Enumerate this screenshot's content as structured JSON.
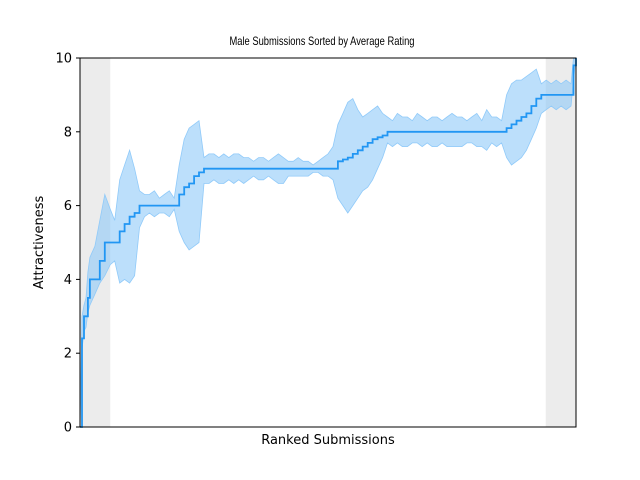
{
  "chart_data": {
    "type": "line",
    "title": "Male Submissions Sorted by Average Rating",
    "xlabel": "Ranked Submissions",
    "ylabel": "Attractiveness",
    "ylim": [
      0,
      10
    ],
    "xlim": [
      0,
      1
    ],
    "yticks": [
      0,
      2,
      4,
      6,
      8,
      10
    ],
    "xticks": [],
    "grid": false,
    "legend": "none",
    "colors": {
      "line": "#2196f3",
      "band": "#90caf9",
      "shade": "#e0e0e0"
    },
    "shaded_regions": [
      [
        0.0,
        0.061
      ],
      [
        0.939,
        1.0
      ]
    ],
    "series": [
      {
        "x": [
          0.0,
          0.004,
          0.008,
          0.012,
          0.016,
          0.02,
          0.03,
          0.04,
          0.05,
          0.061,
          0.07,
          0.08,
          0.09,
          0.1,
          0.11,
          0.12,
          0.13,
          0.14,
          0.15,
          0.16,
          0.17,
          0.18,
          0.19,
          0.2,
          0.21,
          0.22,
          0.23,
          0.24,
          0.25,
          0.26,
          0.27,
          0.28,
          0.29,
          0.3,
          0.31,
          0.32,
          0.33,
          0.34,
          0.35,
          0.36,
          0.37,
          0.38,
          0.39,
          0.4,
          0.41,
          0.42,
          0.43,
          0.44,
          0.45,
          0.46,
          0.47,
          0.48,
          0.49,
          0.5,
          0.51,
          0.52,
          0.53,
          0.54,
          0.55,
          0.56,
          0.57,
          0.58,
          0.59,
          0.6,
          0.61,
          0.62,
          0.63,
          0.64,
          0.65,
          0.66,
          0.67,
          0.68,
          0.69,
          0.7,
          0.71,
          0.72,
          0.73,
          0.74,
          0.75,
          0.76,
          0.77,
          0.78,
          0.79,
          0.8,
          0.81,
          0.82,
          0.83,
          0.84,
          0.85,
          0.86,
          0.87,
          0.88,
          0.89,
          0.9,
          0.91,
          0.92,
          0.93,
          0.94,
          0.95,
          0.96,
          0.97,
          0.98,
          0.99,
          0.995,
          1.0
        ],
        "mean": [
          0.0,
          2.4,
          3.0,
          3.0,
          3.5,
          4.0,
          4.0,
          4.5,
          5.0,
          5.0,
          5.0,
          5.3,
          5.5,
          5.7,
          5.8,
          6.0,
          6.0,
          6.0,
          6.0,
          6.0,
          6.0,
          6.0,
          6.0,
          6.3,
          6.5,
          6.6,
          6.8,
          6.9,
          7.0,
          7.0,
          7.0,
          7.0,
          7.0,
          7.0,
          7.0,
          7.0,
          7.0,
          7.0,
          7.0,
          7.0,
          7.0,
          7.0,
          7.0,
          7.0,
          7.0,
          7.0,
          7.0,
          7.0,
          7.0,
          7.0,
          7.0,
          7.0,
          7.0,
          7.0,
          7.0,
          7.2,
          7.25,
          7.3,
          7.4,
          7.5,
          7.6,
          7.7,
          7.8,
          7.85,
          7.9,
          8.0,
          8.0,
          8.0,
          8.0,
          8.0,
          8.0,
          8.0,
          8.0,
          8.0,
          8.0,
          8.0,
          8.0,
          8.0,
          8.0,
          8.0,
          8.0,
          8.0,
          8.0,
          8.0,
          8.0,
          8.0,
          8.0,
          8.0,
          8.0,
          8.1,
          8.2,
          8.3,
          8.4,
          8.5,
          8.7,
          8.9,
          9.0,
          9.0,
          9.0,
          9.0,
          9.0,
          9.0,
          9.0,
          9.8,
          10.0
        ],
        "lower": [
          0.0,
          2.1,
          2.6,
          2.7,
          3.1,
          3.3,
          3.6,
          3.9,
          4.1,
          4.4,
          4.5,
          3.9,
          4.0,
          3.9,
          4.1,
          5.4,
          5.7,
          5.8,
          5.7,
          5.8,
          5.8,
          5.7,
          5.9,
          5.3,
          5.0,
          4.8,
          4.9,
          5.0,
          6.6,
          6.6,
          6.7,
          6.6,
          6.6,
          6.7,
          6.6,
          6.7,
          6.6,
          6.7,
          6.8,
          6.7,
          6.7,
          6.8,
          6.7,
          6.6,
          6.6,
          6.8,
          6.8,
          6.8,
          6.8,
          6.8,
          6.9,
          6.9,
          6.8,
          6.8,
          6.7,
          6.2,
          6.0,
          5.8,
          6.0,
          6.2,
          6.4,
          6.5,
          6.7,
          7.0,
          7.3,
          7.7,
          7.6,
          7.7,
          7.6,
          7.6,
          7.7,
          7.7,
          7.6,
          7.7,
          7.6,
          7.6,
          7.7,
          7.6,
          7.6,
          7.6,
          7.6,
          7.7,
          7.7,
          7.6,
          7.6,
          7.5,
          7.7,
          7.6,
          7.7,
          7.3,
          7.1,
          7.2,
          7.3,
          7.5,
          7.8,
          8.1,
          8.5,
          8.6,
          8.7,
          8.6,
          8.7,
          8.6,
          8.7,
          9.4,
          10.0
        ],
        "upper": [
          0.0,
          3.0,
          3.3,
          3.5,
          4.2,
          4.6,
          4.9,
          5.6,
          6.3,
          5.9,
          5.6,
          6.7,
          7.1,
          7.5,
          7.0,
          6.4,
          6.3,
          6.3,
          6.4,
          6.2,
          6.3,
          6.4,
          6.2,
          7.1,
          7.8,
          8.1,
          8.2,
          8.3,
          7.3,
          7.4,
          7.4,
          7.3,
          7.4,
          7.3,
          7.4,
          7.4,
          7.3,
          7.3,
          7.2,
          7.3,
          7.3,
          7.2,
          7.3,
          7.4,
          7.3,
          7.2,
          7.2,
          7.3,
          7.2,
          7.2,
          7.1,
          7.2,
          7.3,
          7.4,
          7.6,
          8.2,
          8.5,
          8.8,
          8.9,
          8.6,
          8.4,
          8.5,
          8.6,
          8.7,
          8.5,
          8.4,
          8.3,
          8.5,
          8.4,
          8.4,
          8.3,
          8.5,
          8.4,
          8.3,
          8.4,
          8.4,
          8.3,
          8.4,
          8.5,
          8.4,
          8.4,
          8.3,
          8.4,
          8.5,
          8.3,
          8.6,
          8.4,
          8.4,
          8.3,
          9.0,
          9.3,
          9.4,
          9.4,
          9.5,
          9.6,
          9.7,
          9.3,
          9.4,
          9.3,
          9.4,
          9.3,
          9.4,
          9.3,
          10.0,
          10.0
        ]
      }
    ]
  }
}
